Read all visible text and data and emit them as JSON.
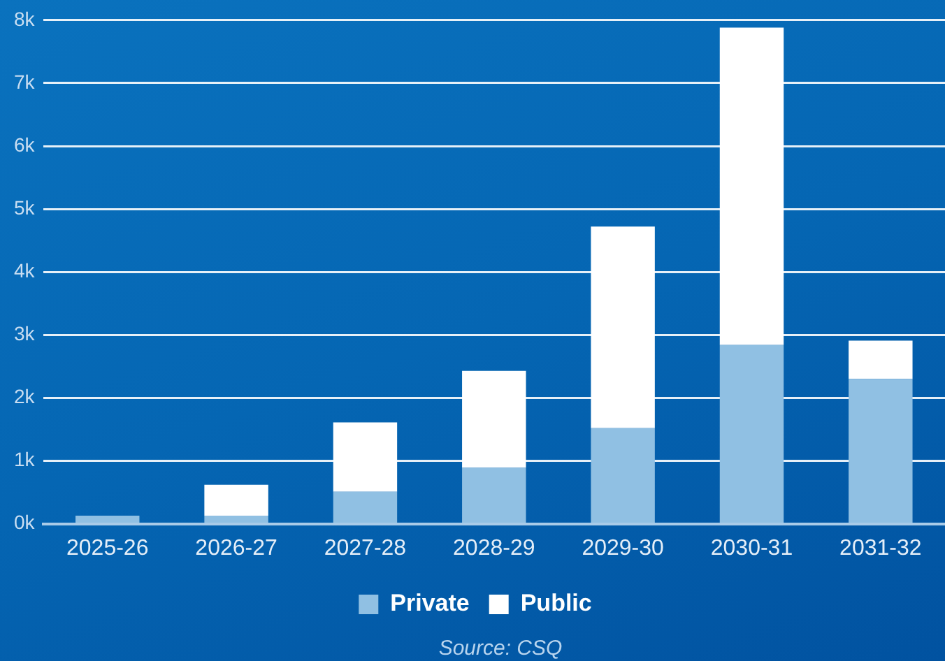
{
  "chart_data": {
    "type": "bar",
    "stacked": true,
    "categories": [
      "2025-26",
      "2026-27",
      "2027-28",
      "2028-29",
      "2029-30",
      "2030-31",
      "2031-32"
    ],
    "series": [
      {
        "name": "Private",
        "color": "#90c0e3",
        "values": [
          130,
          130,
          510,
          890,
          1520,
          2840,
          2300
        ]
      },
      {
        "name": "Public",
        "color": "#ffffff",
        "values": [
          0,
          490,
          1100,
          1540,
          3200,
          5040,
          610
        ]
      }
    ],
    "ylim": [
      0,
      8000
    ],
    "yticks": [
      {
        "value": 0,
        "label": "0k"
      },
      {
        "value": 1000,
        "label": "1k"
      },
      {
        "value": 2000,
        "label": "2k"
      },
      {
        "value": 3000,
        "label": "3k"
      },
      {
        "value": 4000,
        "label": "4k"
      },
      {
        "value": 5000,
        "label": "5k"
      },
      {
        "value": 6000,
        "label": "6k"
      },
      {
        "value": 7000,
        "label": "7k"
      },
      {
        "value": 8000,
        "label": "8k"
      }
    ],
    "grid": "y",
    "legend": "bottom",
    "annotations": [
      "Source: CSQ"
    ]
  }
}
